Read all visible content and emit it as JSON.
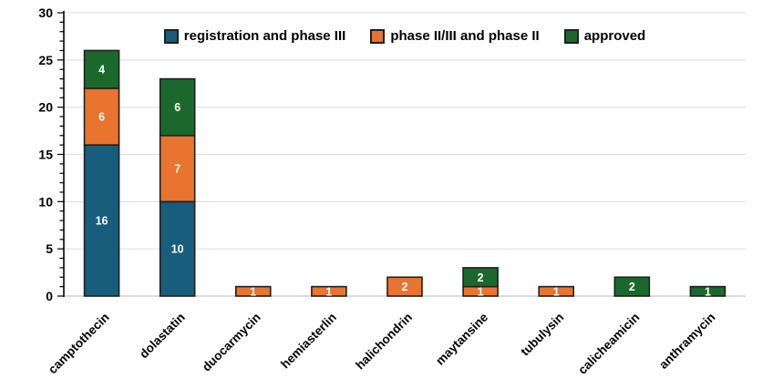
{
  "chart_data": {
    "type": "bar",
    "stacked": true,
    "title": "",
    "xlabel": "",
    "ylabel": "",
    "ylim": [
      0,
      30
    ],
    "yticks": [
      0,
      5,
      10,
      15,
      20,
      25,
      30
    ],
    "minor_tick_step": 1,
    "grid": true,
    "legend_position": "top-inside",
    "categories": [
      "camptothecin",
      "dolastatin",
      "duocarmycin",
      "hemiasterlin",
      "halichondrin",
      "maytansine",
      "tubulysin",
      "calicheamicin",
      "anthramycin"
    ],
    "series": [
      {
        "name": "registration and phase III",
        "color": "#185d7c",
        "values": [
          16,
          10,
          0,
          0,
          0,
          0,
          0,
          0,
          0
        ]
      },
      {
        "name": "phase II/III and phase II",
        "color": "#e8742f",
        "values": [
          6,
          7,
          1,
          1,
          2,
          1,
          1,
          0,
          0
        ]
      },
      {
        "name": "approved",
        "color": "#1b682c",
        "values": [
          4,
          6,
          0,
          0,
          0,
          2,
          0,
          2,
          1
        ]
      }
    ]
  },
  "style": {
    "background": "#ffffff",
    "grid_color": "#dcdcdc",
    "baseline_color": "#c8c8c8",
    "axis_color": "#000000",
    "tick_label_color": "#000000",
    "bar_border_color": "#1f1f1f",
    "bar_label_color": "#ffffff"
  }
}
